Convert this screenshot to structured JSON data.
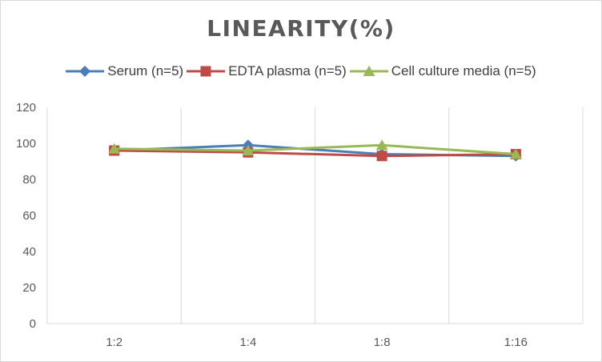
{
  "colors": {
    "serum": "#4a7ebb",
    "edta": "#be4b48",
    "cell": "#98b954",
    "grid": "#d9d9d9",
    "text": "#595959"
  },
  "chart_data": {
    "type": "line",
    "title": "LINEARITY(%)",
    "xlabel": "",
    "ylabel": "",
    "categories": [
      "1:2",
      "1:4",
      "1:8",
      "1:16"
    ],
    "ylim": [
      0,
      120
    ],
    "yticks": [
      0,
      20,
      40,
      60,
      80,
      100,
      120
    ],
    "grid": "vertical",
    "legend_position": "top",
    "series": [
      {
        "name": "Serum (n=5)",
        "marker": "diamond",
        "values": [
          96,
          99,
          94,
          93
        ]
      },
      {
        "name": "EDTA plasma (n=5)",
        "marker": "square",
        "values": [
          96,
          95,
          93,
          94
        ]
      },
      {
        "name": "Cell culture media (n=5)",
        "marker": "triangle",
        "values": [
          97,
          96,
          99,
          94
        ]
      }
    ]
  }
}
